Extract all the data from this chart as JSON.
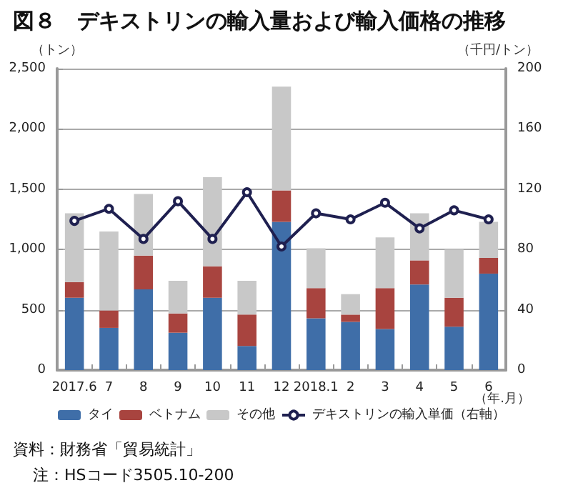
{
  "chart_data": {
    "type": "bar",
    "title": "図８　デキストリンの輸入量および輸入価格の推移",
    "ylabel": "（トン）",
    "y2label": "（千円/トン）",
    "xlabel": "（年.月）",
    "annotations": [
      "資料：財務省「貿易統計」",
      "注：HSコード3505.10-200"
    ],
    "categories": [
      "2017.6",
      "7",
      "8",
      "9",
      "10",
      "11",
      "12",
      "2018.1",
      "2",
      "3",
      "4",
      "5",
      "6"
    ],
    "stacked": true,
    "grid": "y",
    "legend": "bottom",
    "ylim": [
      0,
      2500
    ],
    "yticks": [
      0,
      500,
      {
        "value": 1000,
        "label": "1,000"
      },
      {
        "value": 1500,
        "label": "1,500"
      },
      {
        "value": 2000,
        "label": "2,000"
      },
      {
        "value": 2500,
        "label": "2,500"
      }
    ],
    "y2lim": [
      0,
      200
    ],
    "y2ticks": [
      0,
      40,
      80,
      120,
      160,
      200
    ],
    "series": [
      {
        "name": "タイ",
        "color": "#3f6ea8",
        "values": [
          600,
          350,
          670,
          310,
          600,
          200,
          1230,
          430,
          400,
          340,
          710,
          360,
          800
        ]
      },
      {
        "name": "ベトナム",
        "color": "#a8443f",
        "values": [
          130,
          145,
          280,
          160,
          260,
          260,
          260,
          250,
          60,
          340,
          200,
          240,
          130
        ]
      },
      {
        "name": "その他",
        "color": "#c8c8c8",
        "values": [
          570,
          655,
          510,
          270,
          740,
          280,
          860,
          330,
          170,
          420,
          390,
          400,
          300
        ]
      },
      {
        "name": "デキストリンの輸入単価（右軸）",
        "type": "line",
        "axis": "y2",
        "marker": "circle",
        "color": "#1f2050",
        "values": [
          99,
          107,
          87,
          112,
          87,
          118,
          82,
          104,
          100,
          111,
          94,
          106,
          100
        ]
      }
    ]
  }
}
